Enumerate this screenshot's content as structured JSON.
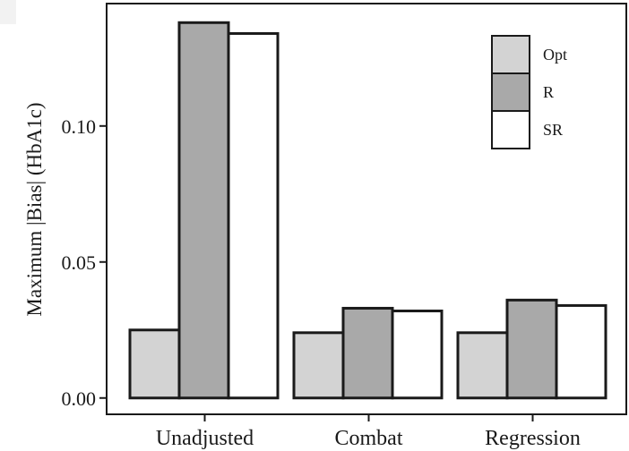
{
  "chart_data": {
    "type": "bar",
    "title": "",
    "xlabel": "",
    "ylabel": "Maximum |Bias| (HbA1c)",
    "categories": [
      "Unadjusted",
      "Combat",
      "Regression"
    ],
    "series": [
      {
        "name": "Opt",
        "values": [
          0.025,
          0.024,
          0.024
        ],
        "color": "#d3d3d3"
      },
      {
        "name": "R",
        "values": [
          0.138,
          0.033,
          0.036
        ],
        "color": "#a9a9a9"
      },
      {
        "name": "SR",
        "values": [
          0.134,
          0.032,
          0.034
        ],
        "color": "#ffffff"
      }
    ],
    "ylim": [
      -0.006,
      0.145
    ],
    "yticks": [
      {
        "value": 0.0,
        "label": "0.00"
      },
      {
        "value": 0.05,
        "label": "0.05"
      },
      {
        "value": 0.1,
        "label": "0.10"
      }
    ],
    "grid": false,
    "legend_position": "top-right"
  }
}
